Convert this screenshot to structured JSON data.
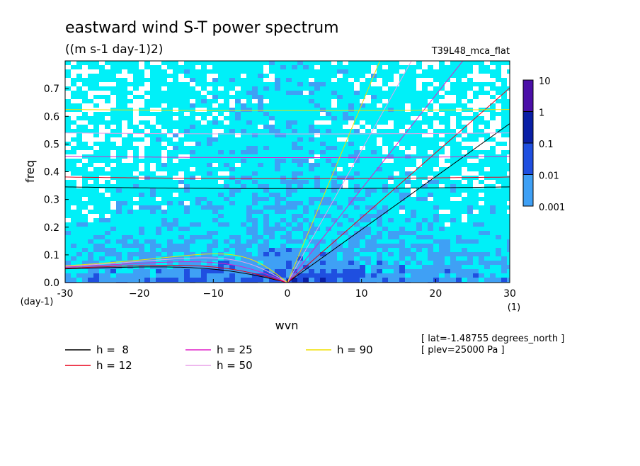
{
  "chart_data": {
    "type": "heatmap",
    "title": "eastward wind S-T power spectrum",
    "subtitle": "((m s-1 day-1)2)",
    "run_label": "T39L48_mca_flat",
    "xlabel": "wvn",
    "ylabel": "freq",
    "x_unit": "(1)",
    "y_unit": "(day-1)",
    "xlim": [
      -30,
      30
    ],
    "ylim": [
      0,
      0.8
    ],
    "x_ticks": [
      -30,
      -20,
      -10,
      0,
      10,
      20,
      30
    ],
    "x_tick_labels": [
      "-30",
      "−20",
      "−10",
      "0",
      "10",
      "20",
      "30"
    ],
    "y_ticks": [
      0,
      0.1,
      0.2,
      0.3,
      0.4,
      0.5,
      0.6,
      0.7
    ],
    "y_tick_labels": [
      "0.0",
      "0.1",
      "0.2",
      "0.3",
      "0.4",
      "0.5",
      "0.6",
      "0.7"
    ],
    "colorbar": {
      "levels": [
        "10",
        "1",
        "0.1",
        "0.01",
        "0.001"
      ],
      "colors": [
        "#4b0fa8",
        "#0a1fa6",
        "#1f4fe0",
        "#3fa0f5",
        "#00f0f8"
      ]
    },
    "dispersion_curves": [
      {
        "label": "h =  8",
        "h": 8,
        "color": "#000000"
      },
      {
        "label": "h = 12",
        "h": 12,
        "color": "#e8001a"
      },
      {
        "label": "h = 25",
        "h": 25,
        "color": "#e020c8"
      },
      {
        "label": "h = 50",
        "h": 50,
        "color": "#e8a0e8"
      },
      {
        "label": "h = 90",
        "h": 90,
        "color": "#f0e000"
      }
    ],
    "annotations": [
      "[ lat=-1.48755 degrees_north ]",
      "[ plev=25000 Pa ]"
    ],
    "grid": false
  }
}
